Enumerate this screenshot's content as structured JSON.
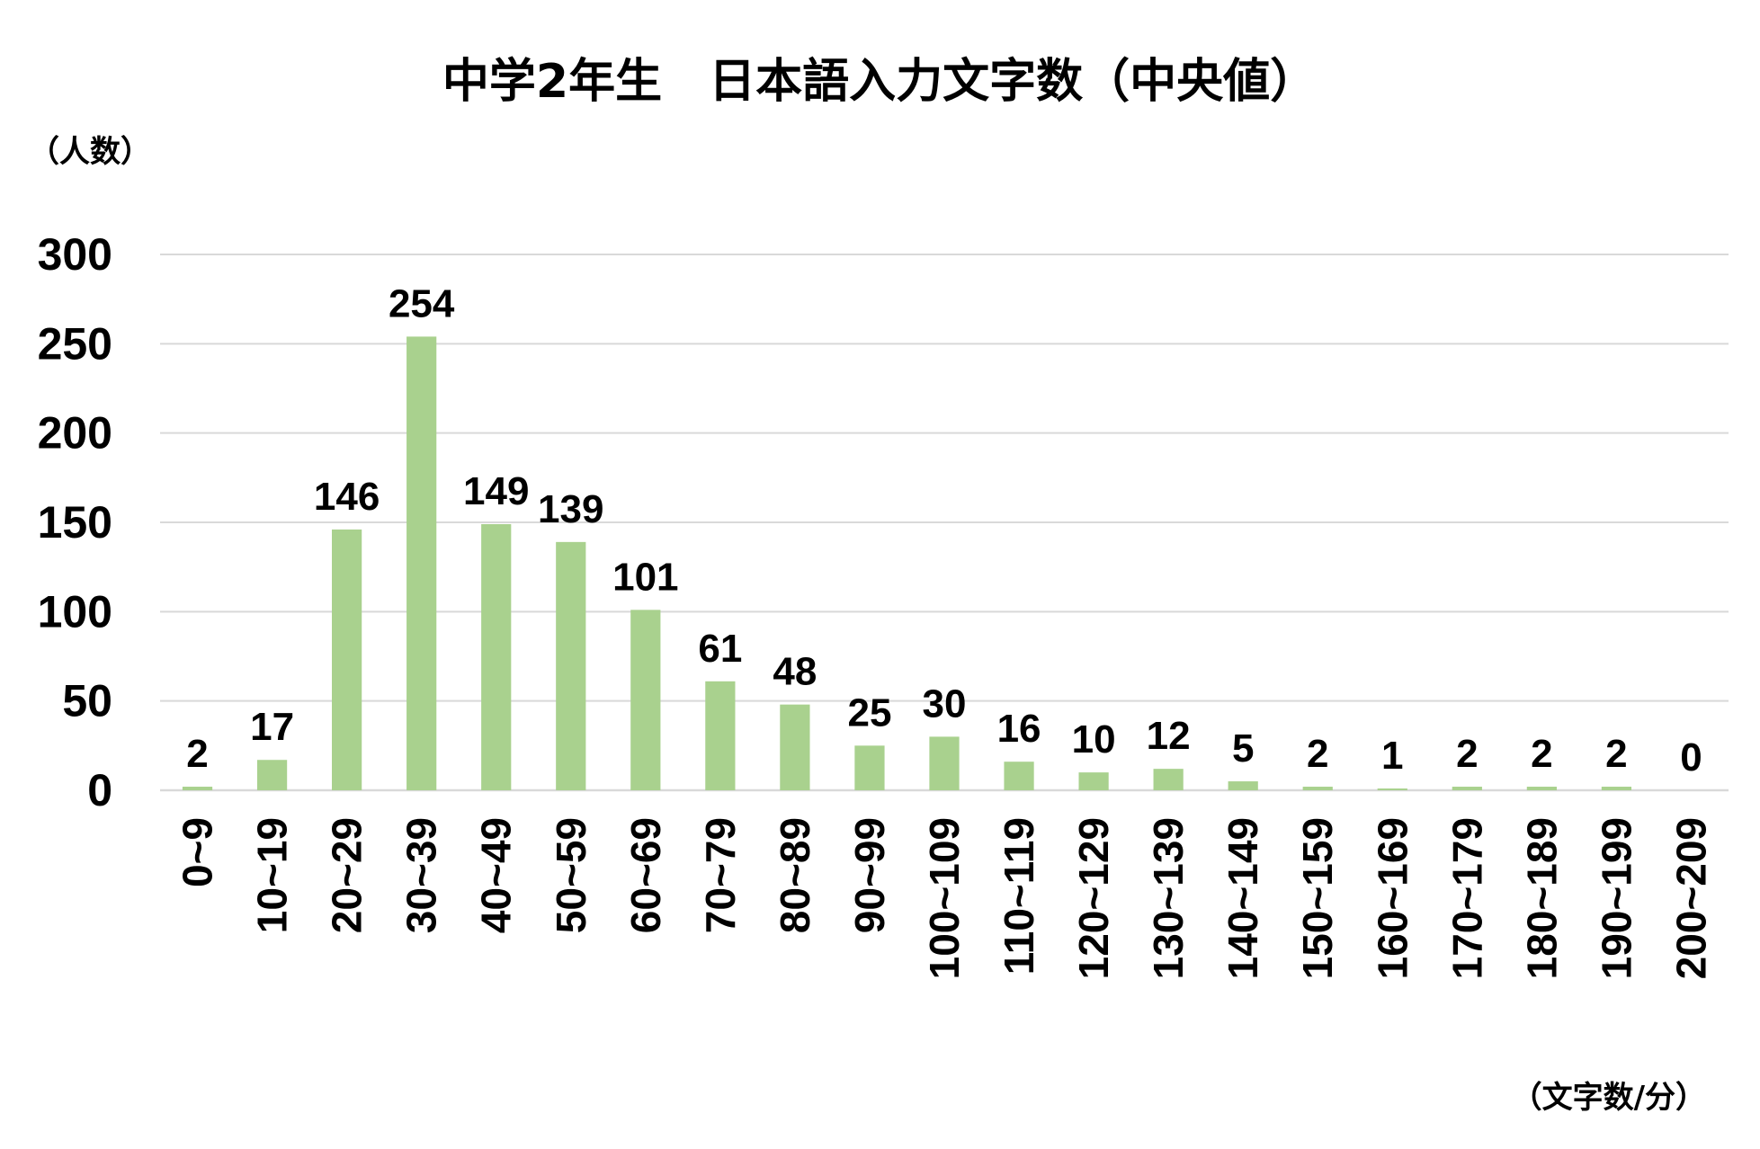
{
  "chart_data": {
    "type": "bar",
    "title": "中学2年生　日本語入力文字数（中央値）",
    "ylabel": "（人数）",
    "xlabel": "（文字数/分）",
    "ylim": [
      0,
      300
    ],
    "yticks": [
      0,
      50,
      100,
      150,
      200,
      250,
      300
    ],
    "grid": true,
    "legend": "none",
    "bar_color": "#a9d18e",
    "grid_color": "#d9d9d9",
    "categories": [
      "0~9",
      "10~19",
      "20~29",
      "30~39",
      "40~49",
      "50~59",
      "60~69",
      "70~79",
      "80~89",
      "90~99",
      "100~109",
      "110~119",
      "120~129",
      "130~139",
      "140~149",
      "150~159",
      "160~169",
      "170~179",
      "180~189",
      "190~199",
      "200~209"
    ],
    "values": [
      2,
      17,
      146,
      254,
      149,
      139,
      101,
      61,
      48,
      25,
      30,
      16,
      10,
      12,
      5,
      2,
      1,
      2,
      2,
      2,
      0
    ]
  }
}
